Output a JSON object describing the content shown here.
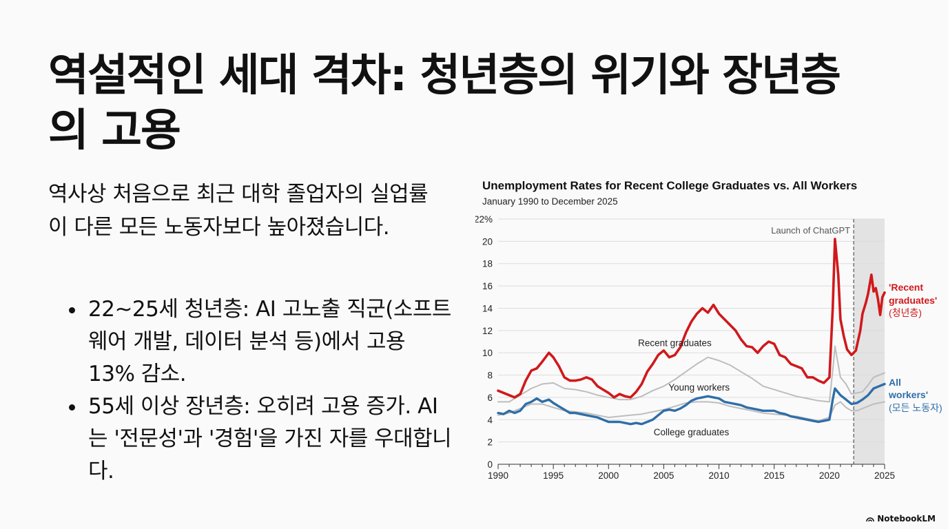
{
  "slide": {
    "title": "역설적인 세대 격차: 청년층의 위기와 장년층의 고용",
    "intro": "역사상 처음으로 최근 대학 졸업자의 실업률이 다른 모든 노동자보다 높아졌습니다.",
    "bullets": [
      "22~25세 청년층: AI 고노출 직군(소프트웨어 개발, 데이터 분석 등)에서 고용 13% 감소.",
      "55세 이상 장년층: 오히려 고용 증가. AI는 '전문성'과 '경험'을 가진 자를 우대합니다."
    ],
    "brand": "NotebookLM"
  },
  "chart_data": {
    "type": "line",
    "title": "Unemployment Rates for Recent College Graduates vs. All Workers",
    "subtitle": "January 1990 to December 2025",
    "xlim": [
      1990,
      2025
    ],
    "ylim": [
      0,
      22
    ],
    "y_ticks": [
      "22%",
      "20",
      "18",
      "16",
      "14",
      "12",
      "10",
      "8",
      "6",
      "4",
      "2",
      "0"
    ],
    "x_ticks": [
      "1990",
      "1995",
      "2000",
      "2005",
      "2010",
      "2015",
      "2020",
      "2025"
    ],
    "grid": true,
    "shaded_region": {
      "from": 2022.2,
      "to": 2025,
      "label": "Launch of ChatGPT"
    },
    "colors": {
      "recent": "#d0191b",
      "all": "#2e6ea8",
      "young": "#bdbdbd",
      "college": "#bdbdbd",
      "shade": "#e3e3e3"
    },
    "series": [
      {
        "name": "Recent graduates",
        "color": "#d0191b",
        "end_label": [
          "'Recent",
          "graduates'",
          "(청년층)"
        ],
        "points": [
          [
            1990,
            6.6
          ],
          [
            1990.5,
            6.4
          ],
          [
            1991,
            6.2
          ],
          [
            1991.5,
            6.0
          ],
          [
            1992,
            6.3
          ],
          [
            1992.5,
            7.5
          ],
          [
            1993,
            8.4
          ],
          [
            1993.5,
            8.6
          ],
          [
            1994,
            9.2
          ],
          [
            1994.6,
            10.0
          ],
          [
            1995,
            9.6
          ],
          [
            1995.5,
            8.8
          ],
          [
            1996,
            7.8
          ],
          [
            1996.5,
            7.5
          ],
          [
            1997,
            7.5
          ],
          [
            1997.5,
            7.6
          ],
          [
            1998,
            7.8
          ],
          [
            1998.5,
            7.6
          ],
          [
            1999,
            7.0
          ],
          [
            1999.5,
            6.7
          ],
          [
            2000,
            6.4
          ],
          [
            2000.5,
            6.0
          ],
          [
            2001,
            6.3
          ],
          [
            2001.5,
            6.1
          ],
          [
            2002,
            6.0
          ],
          [
            2002.5,
            6.5
          ],
          [
            2003,
            7.2
          ],
          [
            2003.5,
            8.3
          ],
          [
            2004,
            9.0
          ],
          [
            2004.5,
            9.8
          ],
          [
            2005,
            10.2
          ],
          [
            2005.5,
            9.6
          ],
          [
            2006,
            9.8
          ],
          [
            2006.5,
            10.5
          ],
          [
            2007,
            11.8
          ],
          [
            2007.5,
            12.8
          ],
          [
            2008,
            13.5
          ],
          [
            2008.5,
            14.0
          ],
          [
            2009,
            13.6
          ],
          [
            2009.5,
            14.3
          ],
          [
            2010,
            13.5
          ],
          [
            2010.5,
            13.0
          ],
          [
            2011,
            12.5
          ],
          [
            2011.5,
            12.0
          ],
          [
            2012,
            11.2
          ],
          [
            2012.5,
            10.6
          ],
          [
            2013,
            10.5
          ],
          [
            2013.5,
            10.0
          ],
          [
            2014,
            10.6
          ],
          [
            2014.5,
            11.0
          ],
          [
            2015,
            10.8
          ],
          [
            2015.5,
            9.8
          ],
          [
            2016,
            9.6
          ],
          [
            2016.5,
            9.0
          ],
          [
            2017,
            8.8
          ],
          [
            2017.5,
            8.6
          ],
          [
            2018,
            7.8
          ],
          [
            2018.5,
            7.8
          ],
          [
            2019,
            7.5
          ],
          [
            2019.5,
            7.3
          ],
          [
            2020,
            7.8
          ],
          [
            2020.3,
            14.0
          ],
          [
            2020.5,
            20.2
          ],
          [
            2020.8,
            17.0
          ],
          [
            2021,
            13.0
          ],
          [
            2021.3,
            11.5
          ],
          [
            2021.6,
            10.3
          ],
          [
            2022,
            9.8
          ],
          [
            2022.4,
            10.2
          ],
          [
            2022.8,
            12.0
          ],
          [
            2023,
            13.5
          ],
          [
            2023.3,
            14.5
          ],
          [
            2023.5,
            15.3
          ],
          [
            2023.8,
            17.0
          ],
          [
            2024,
            15.5
          ],
          [
            2024.2,
            15.8
          ],
          [
            2024.4,
            14.8
          ],
          [
            2024.6,
            13.4
          ],
          [
            2024.8,
            15.0
          ],
          [
            2025,
            15.4
          ]
        ]
      },
      {
        "name": "Young workers",
        "color": "#bdbdbd",
        "points": [
          [
            1990,
            5.6
          ],
          [
            1991,
            5.6
          ],
          [
            1992,
            6.2
          ],
          [
            1993,
            6.8
          ],
          [
            1994,
            7.2
          ],
          [
            1995,
            7.3
          ],
          [
            1996,
            6.8
          ],
          [
            1997,
            6.7
          ],
          [
            1998,
            6.5
          ],
          [
            1999,
            6.2
          ],
          [
            2000,
            6.0
          ],
          [
            2001,
            5.8
          ],
          [
            2002,
            5.8
          ],
          [
            2003,
            6.1
          ],
          [
            2004,
            6.6
          ],
          [
            2005,
            7.0
          ],
          [
            2006,
            7.6
          ],
          [
            2007,
            8.3
          ],
          [
            2008,
            9.0
          ],
          [
            2009,
            9.6
          ],
          [
            2010,
            9.3
          ],
          [
            2011,
            8.9
          ],
          [
            2012,
            8.3
          ],
          [
            2013,
            7.7
          ],
          [
            2014,
            7.0
          ],
          [
            2015,
            6.7
          ],
          [
            2016,
            6.4
          ],
          [
            2017,
            6.1
          ],
          [
            2018,
            5.9
          ],
          [
            2019,
            5.7
          ],
          [
            2020,
            5.6
          ],
          [
            2020.4,
            9.4
          ],
          [
            2020.5,
            10.6
          ],
          [
            2021,
            7.8
          ],
          [
            2021.5,
            7.2
          ],
          [
            2022,
            6.3
          ],
          [
            2023,
            6.5
          ],
          [
            2023.5,
            7.1
          ],
          [
            2024,
            7.8
          ],
          [
            2025,
            8.2
          ]
        ]
      },
      {
        "name": "All workers",
        "color": "#2e6ea8",
        "end_label": [
          "All",
          "workers'",
          "(모든 노동자)"
        ],
        "points": [
          [
            1990,
            4.6
          ],
          [
            1990.5,
            4.5
          ],
          [
            1991,
            4.8
          ],
          [
            1991.5,
            4.6
          ],
          [
            1992,
            4.8
          ],
          [
            1992.5,
            5.4
          ],
          [
            1993,
            5.6
          ],
          [
            1993.5,
            5.9
          ],
          [
            1994,
            5.6
          ],
          [
            1994.6,
            5.8
          ],
          [
            1995,
            5.5
          ],
          [
            1995.5,
            5.2
          ],
          [
            1996,
            4.9
          ],
          [
            1996.5,
            4.6
          ],
          [
            1997,
            4.6
          ],
          [
            1997.5,
            4.5
          ],
          [
            1998,
            4.4
          ],
          [
            1998.5,
            4.3
          ],
          [
            1999,
            4.2
          ],
          [
            1999.5,
            4.0
          ],
          [
            2000,
            3.8
          ],
          [
            2000.5,
            3.8
          ],
          [
            2001,
            3.8
          ],
          [
            2001.5,
            3.7
          ],
          [
            2002,
            3.6
          ],
          [
            2002.5,
            3.7
          ],
          [
            2003,
            3.6
          ],
          [
            2003.5,
            3.8
          ],
          [
            2004,
            4.0
          ],
          [
            2004.5,
            4.4
          ],
          [
            2005,
            4.8
          ],
          [
            2005.5,
            4.9
          ],
          [
            2006,
            4.8
          ],
          [
            2006.5,
            5.0
          ],
          [
            2007,
            5.3
          ],
          [
            2007.5,
            5.7
          ],
          [
            2008,
            5.9
          ],
          [
            2008.5,
            6.0
          ],
          [
            2009,
            6.1
          ],
          [
            2009.5,
            6.0
          ],
          [
            2010,
            5.9
          ],
          [
            2010.5,
            5.6
          ],
          [
            2011,
            5.5
          ],
          [
            2011.5,
            5.4
          ],
          [
            2012,
            5.3
          ],
          [
            2012.5,
            5.1
          ],
          [
            2013,
            5.0
          ],
          [
            2013.5,
            4.9
          ],
          [
            2014,
            4.8
          ],
          [
            2014.5,
            4.8
          ],
          [
            2015,
            4.8
          ],
          [
            2015.5,
            4.6
          ],
          [
            2016,
            4.5
          ],
          [
            2016.5,
            4.3
          ],
          [
            2017,
            4.2
          ],
          [
            2017.5,
            4.1
          ],
          [
            2018,
            4.0
          ],
          [
            2018.5,
            3.9
          ],
          [
            2019,
            3.8
          ],
          [
            2019.5,
            3.9
          ],
          [
            2020,
            4.0
          ],
          [
            2020.3,
            5.8
          ],
          [
            2020.5,
            6.8
          ],
          [
            2021,
            6.2
          ],
          [
            2021.5,
            5.8
          ],
          [
            2022,
            5.4
          ],
          [
            2022.5,
            5.5
          ],
          [
            2023,
            5.8
          ],
          [
            2023.5,
            6.2
          ],
          [
            2024,
            6.8
          ],
          [
            2024.5,
            7.0
          ],
          [
            2025,
            7.2
          ]
        ]
      },
      {
        "name": "College graduates",
        "color": "#bdbdbd",
        "points": [
          [
            1990,
            4.4
          ],
          [
            1991,
            4.6
          ],
          [
            1992,
            5.0
          ],
          [
            1993,
            5.4
          ],
          [
            1994,
            5.4
          ],
          [
            1995,
            5.1
          ],
          [
            1996,
            4.8
          ],
          [
            1997,
            4.7
          ],
          [
            1998,
            4.6
          ],
          [
            1999,
            4.4
          ],
          [
            2000,
            4.2
          ],
          [
            2001,
            4.3
          ],
          [
            2002,
            4.4
          ],
          [
            2003,
            4.5
          ],
          [
            2004,
            4.7
          ],
          [
            2005,
            4.9
          ],
          [
            2006,
            5.2
          ],
          [
            2007,
            5.5
          ],
          [
            2008,
            5.6
          ],
          [
            2009,
            5.6
          ],
          [
            2010,
            5.5
          ],
          [
            2011,
            5.2
          ],
          [
            2012,
            5.0
          ],
          [
            2013,
            4.8
          ],
          [
            2014,
            4.6
          ],
          [
            2015,
            4.5
          ],
          [
            2016,
            4.4
          ],
          [
            2017,
            4.3
          ],
          [
            2018,
            4.1
          ],
          [
            2019,
            3.9
          ],
          [
            2020,
            4.2
          ],
          [
            2020.5,
            5.3
          ],
          [
            2021,
            5.6
          ],
          [
            2021.5,
            5.1
          ],
          [
            2022,
            4.8
          ],
          [
            2022.5,
            4.8
          ],
          [
            2023,
            5.0
          ],
          [
            2024,
            5.4
          ],
          [
            2025,
            5.6
          ]
        ]
      }
    ],
    "annotations": [
      {
        "text": "Recent graduates",
        "x": 2006,
        "y": 10.6
      },
      {
        "text": "Young workers",
        "x": 2008.2,
        "y": 6.6
      },
      {
        "text": "College graduates",
        "x": 2007.5,
        "y": 2.6
      }
    ]
  }
}
